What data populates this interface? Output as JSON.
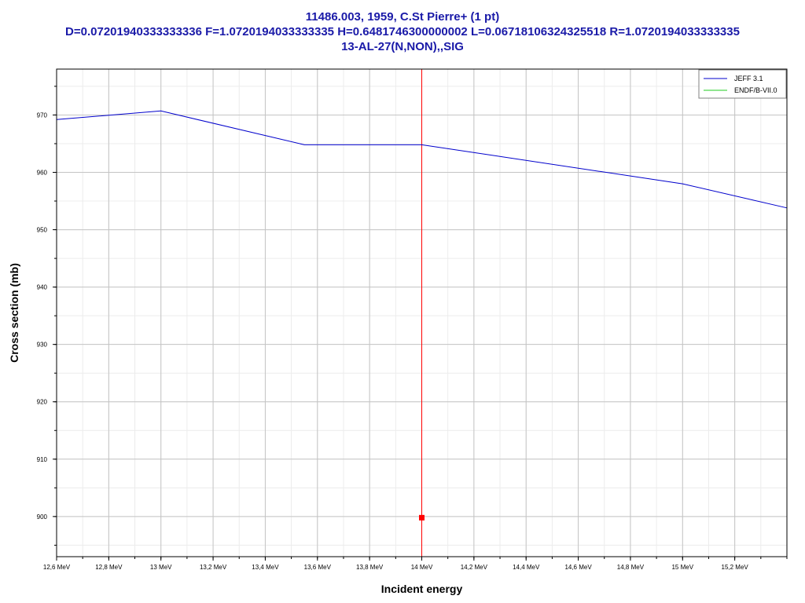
{
  "title_lines": [
    "11486.003, 1959, C.St Pierre+ (1 pt)",
    "D=0.07201940333333336 F=1.0720194033333335 H=0.6481746300000002 L=0.06718106324325518 R=1.0720194033333335",
    "13-AL-27(N,NON),,SIG"
  ],
  "chart_data": {
    "type": "line",
    "xlabel": "Incident energy",
    "ylabel": "Cross section (mb)",
    "xlim": [
      12.6,
      15.4
    ],
    "ylim": [
      893,
      978
    ],
    "x_ticks": [
      {
        "value": 12.6,
        "label": "12,6 MeV"
      },
      {
        "value": 12.8,
        "label": "12,8 MeV"
      },
      {
        "value": 13.0,
        "label": "13 MeV"
      },
      {
        "value": 13.2,
        "label": "13,2 MeV"
      },
      {
        "value": 13.4,
        "label": "13,4 MeV"
      },
      {
        "value": 13.6,
        "label": "13,6 MeV"
      },
      {
        "value": 13.8,
        "label": "13,8 MeV"
      },
      {
        "value": 14.0,
        "label": "14 MeV"
      },
      {
        "value": 14.2,
        "label": "14,2 MeV"
      },
      {
        "value": 14.4,
        "label": "14,4 MeV"
      },
      {
        "value": 14.6,
        "label": "14,6 MeV"
      },
      {
        "value": 14.8,
        "label": "14,8 MeV"
      },
      {
        "value": 15.0,
        "label": "15 MeV"
      },
      {
        "value": 15.2,
        "label": "15,2 MeV"
      }
    ],
    "y_ticks": [
      {
        "value": 900,
        "label": "900"
      },
      {
        "value": 910,
        "label": "910"
      },
      {
        "value": 920,
        "label": "920"
      },
      {
        "value": 930,
        "label": "930"
      },
      {
        "value": 940,
        "label": "940"
      },
      {
        "value": 950,
        "label": "950"
      },
      {
        "value": 960,
        "label": "960"
      },
      {
        "value": 970,
        "label": "970"
      }
    ],
    "grid": true,
    "legend_position": "top-right",
    "series": [
      {
        "name": "JEFF 3.1",
        "color": "#0000cc",
        "x": [
          12.6,
          13.0,
          13.55,
          14.0,
          15.0,
          15.4
        ],
        "y": [
          969.2,
          970.7,
          964.8,
          964.8,
          958.0,
          953.8
        ]
      },
      {
        "name": "ENDF/B-VII.0",
        "color": "#22cc22",
        "x": [],
        "y": []
      }
    ],
    "experimental_points": [
      {
        "x": 14.0,
        "y": 899.8,
        "color": "#ff0000"
      }
    ],
    "vertical_markers": [
      {
        "x": 14.0,
        "color": "#ff0000"
      }
    ]
  }
}
